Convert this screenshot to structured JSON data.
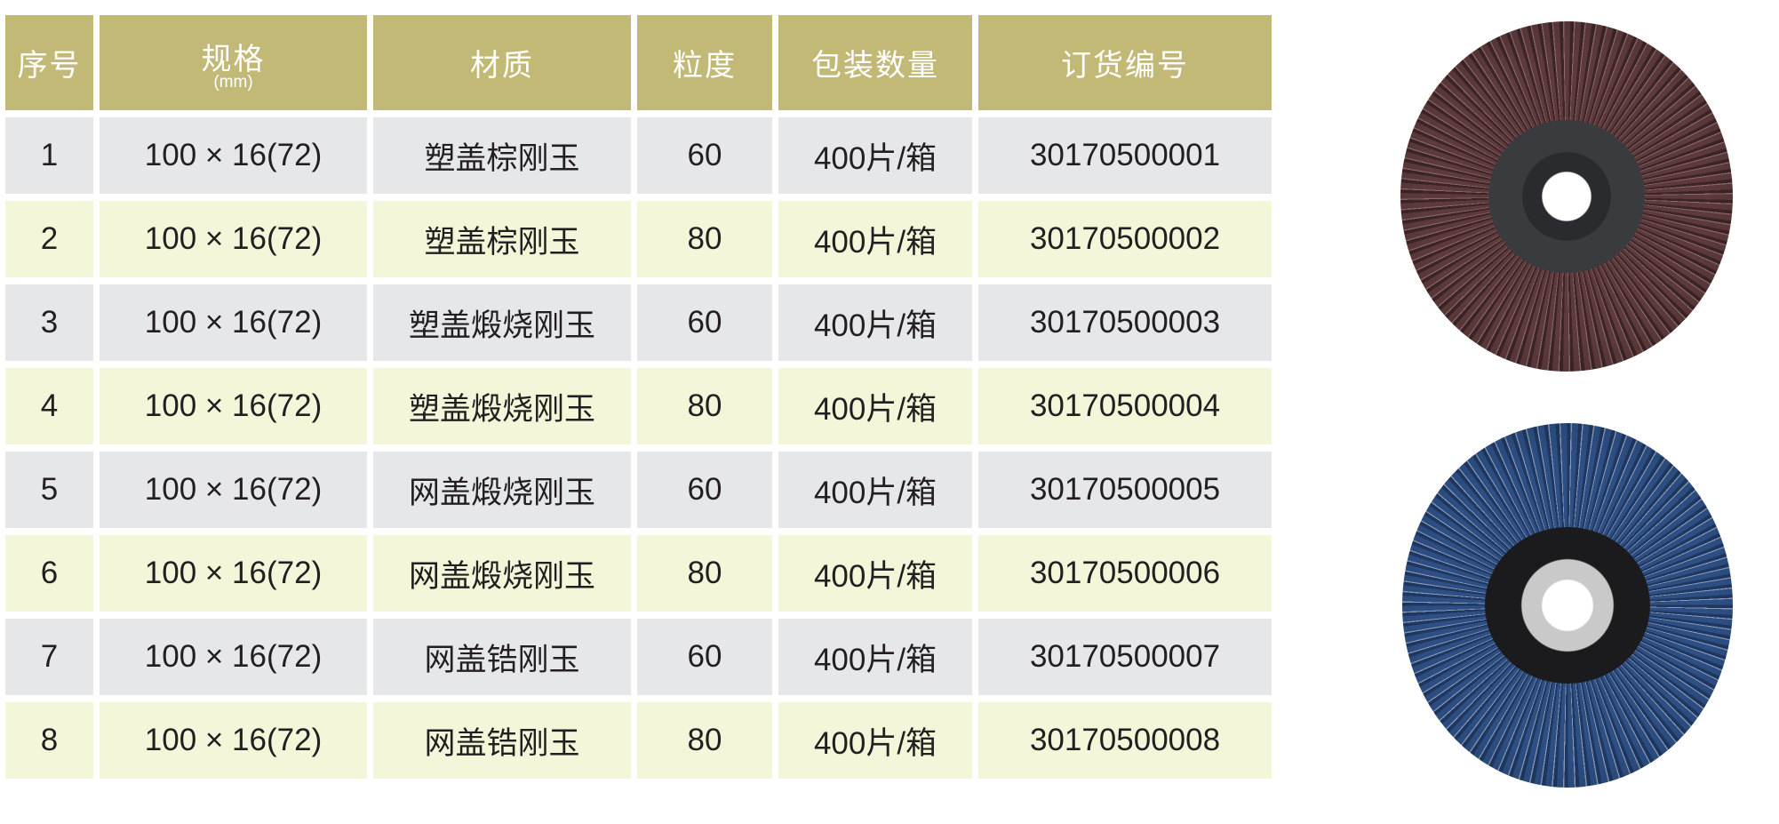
{
  "table": {
    "headers": {
      "index": "序号",
      "spec": "规格",
      "spec_unit": "(mm)",
      "material": "材质",
      "grit": "粒度",
      "packing": "包装数量",
      "order_no": "订货编号"
    },
    "rows": [
      {
        "index": "1",
        "spec": "100 × 16(72)",
        "material": "塑盖棕刚玉",
        "grit": "60",
        "packing": "400片/箱",
        "order_no": "30170500001"
      },
      {
        "index": "2",
        "spec": "100 × 16(72)",
        "material": "塑盖棕刚玉",
        "grit": "80",
        "packing": "400片/箱",
        "order_no": "30170500002"
      },
      {
        "index": "3",
        "spec": "100 × 16(72)",
        "material": "塑盖煅烧刚玉",
        "grit": "60",
        "packing": "400片/箱",
        "order_no": "30170500003"
      },
      {
        "index": "4",
        "spec": "100 × 16(72)",
        "material": "塑盖煅烧刚玉",
        "grit": "80",
        "packing": "400片/箱",
        "order_no": "30170500004"
      },
      {
        "index": "5",
        "spec": "100 × 16(72)",
        "material": "网盖煅烧刚玉",
        "grit": "60",
        "packing": "400片/箱",
        "order_no": "30170500005"
      },
      {
        "index": "6",
        "spec": "100 × 16(72)",
        "material": "网盖煅烧刚玉",
        "grit": "80",
        "packing": "400片/箱",
        "order_no": "30170500006"
      },
      {
        "index": "7",
        "spec": "100 × 16(72)",
        "material": "网盖锆刚玉",
        "grit": "60",
        "packing": "400片/箱",
        "order_no": "30170500007"
      },
      {
        "index": "8",
        "spec": "100 × 16(72)",
        "material": "网盖锆刚玉",
        "grit": "80",
        "packing": "400片/箱",
        "order_no": "30170500008"
      }
    ]
  },
  "colors": {
    "header": "#c2b977",
    "row_gray": "#e6e7e9",
    "row_yellow": "#f3f6d9",
    "text": "#231f20"
  },
  "images": [
    {
      "name": "brown-flap-disc-plastic-cover"
    },
    {
      "name": "blue-flap-disc-mesh-cover"
    }
  ]
}
